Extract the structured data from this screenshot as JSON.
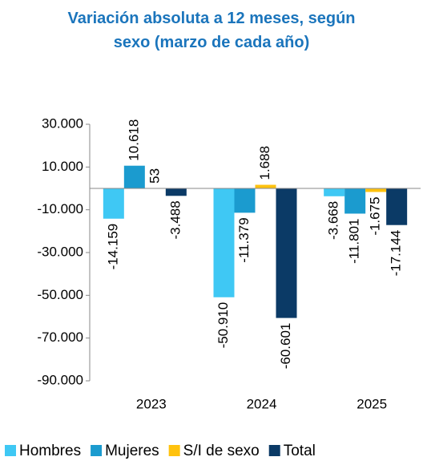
{
  "chart_data": {
    "type": "bar",
    "title": "Variación absoluta a 12 meses, según sexo (marzo de cada año)",
    "categories": [
      "2023",
      "2024",
      "2025"
    ],
    "series": [
      {
        "name": "Hombres",
        "color": "#3fc8f4",
        "values": [
          -14159,
          -50910,
          -3668
        ],
        "value_labels": [
          "-14.159",
          "-50.910",
          "-3.668"
        ]
      },
      {
        "name": "Mujeres",
        "color": "#1b9bcf",
        "values": [
          10618,
          -11379,
          -11801
        ],
        "value_labels": [
          "10.618",
          "-11.379",
          "-11.801"
        ]
      },
      {
        "name": "S/I de sexo",
        "color": "#ffc20e",
        "values": [
          53,
          1688,
          -1675
        ],
        "value_labels": [
          "53",
          "1.688",
          "-1.675"
        ]
      },
      {
        "name": "Total",
        "color": "#0b3a66",
        "values": [
          -3488,
          -60601,
          -17144
        ],
        "value_labels": [
          "-3.488",
          "-60.601",
          "-17.144"
        ]
      }
    ],
    "ylim": [
      -90000,
      30000
    ],
    "yticks": [
      {
        "value": 30000,
        "label": "30.000"
      },
      {
        "value": 10000,
        "label": "10.000"
      },
      {
        "value": -10000,
        "label": "-10.000"
      },
      {
        "value": -30000,
        "label": "-30.000"
      },
      {
        "value": -50000,
        "label": "-50.000"
      },
      {
        "value": -70000,
        "label": "-70.000"
      },
      {
        "value": -90000,
        "label": "-90.000"
      }
    ],
    "legend": "bottom"
  }
}
